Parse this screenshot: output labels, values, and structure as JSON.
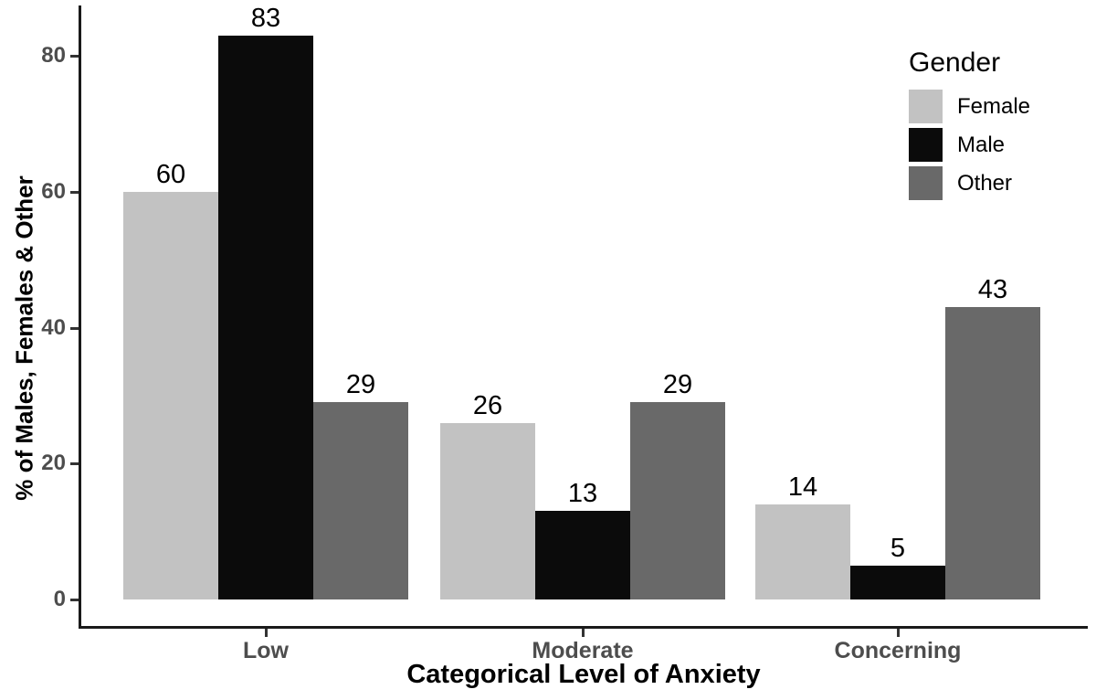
{
  "chart_data": {
    "type": "bar",
    "title": "",
    "categories": [
      "Low",
      "Moderate",
      "Concerning"
    ],
    "series": [
      {
        "name": "Female",
        "color": "#c2c2c2",
        "values": [
          60,
          26,
          14
        ]
      },
      {
        "name": "Male",
        "color": "#0b0b0b",
        "values": [
          83,
          13,
          5
        ]
      },
      {
        "name": "Other",
        "color": "#696969",
        "values": [
          29,
          29,
          43
        ]
      }
    ],
    "xlabel": "Categorical Level of Anxiety",
    "ylabel": "% of Males, Females & Other",
    "yticks": [
      0,
      20,
      40,
      60,
      80
    ],
    "ylim": [
      0,
      88
    ],
    "grid": false,
    "bar_value_labels": true,
    "legend_title": "Gender",
    "legend_position": "top-right",
    "axis_color": "#1a1a1a",
    "tick_label_color": "#4d4d4d",
    "background": "#ffffff"
  }
}
